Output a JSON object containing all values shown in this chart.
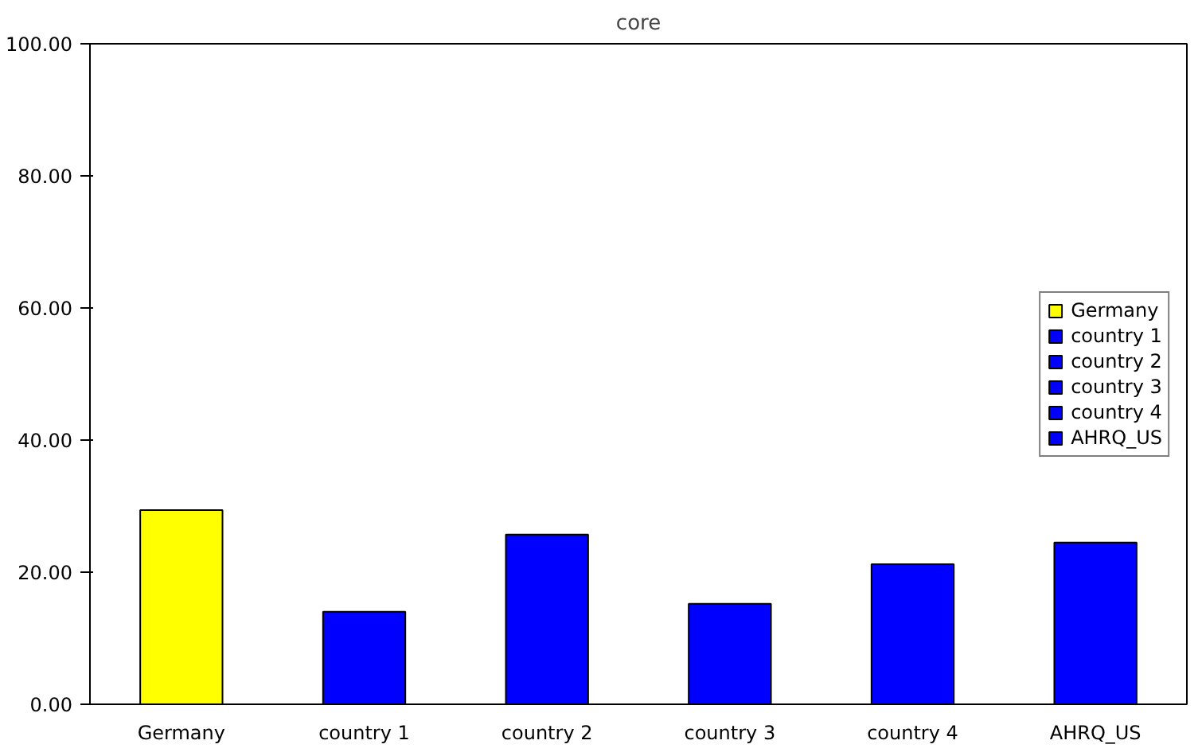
{
  "chart_data": {
    "type": "bar",
    "title": "core",
    "categories": [
      "Germany",
      "country 1",
      "country 2",
      "country 3",
      "country 4",
      "AHRQ_US"
    ],
    "series": [
      {
        "name": "Germany",
        "color": "#ffff00",
        "values": [
          29.4,
          null,
          null,
          null,
          null,
          null
        ]
      },
      {
        "name": "country 1",
        "color": "#0000ff",
        "values": [
          null,
          14.0,
          null,
          null,
          null,
          null
        ]
      },
      {
        "name": "country 2",
        "color": "#0000ff",
        "values": [
          null,
          null,
          25.7,
          null,
          null,
          null
        ]
      },
      {
        "name": "country 3",
        "color": "#0000ff",
        "values": [
          null,
          null,
          null,
          15.2,
          null,
          null
        ]
      },
      {
        "name": "country 4",
        "color": "#0000ff",
        "values": [
          null,
          null,
          null,
          null,
          21.2,
          null
        ]
      },
      {
        "name": "AHRQ_US",
        "color": "#0000ff",
        "values": [
          null,
          null,
          null,
          null,
          null,
          24.5
        ]
      }
    ],
    "ylim": [
      0,
      100
    ],
    "yticks": [
      {
        "value": 0,
        "label": "0.00"
      },
      {
        "value": 20,
        "label": "20.00"
      },
      {
        "value": 40,
        "label": "40.00"
      },
      {
        "value": 60,
        "label": "60.00"
      },
      {
        "value": 80,
        "label": "80.00"
      },
      {
        "value": 100,
        "label": "100.00"
      }
    ],
    "grid": false,
    "legend": "right"
  }
}
